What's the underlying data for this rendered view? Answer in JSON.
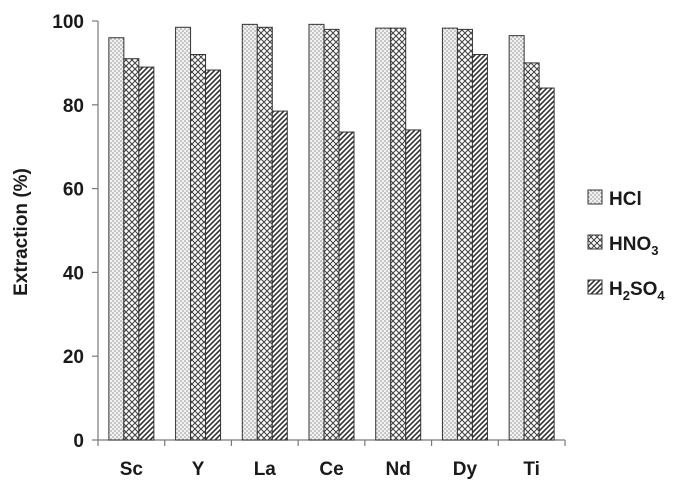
{
  "chart_data": {
    "type": "bar",
    "categories": [
      "Sc",
      "Y",
      "La",
      "Ce",
      "Nd",
      "Dy",
      "Ti"
    ],
    "series": [
      {
        "name": "HCl",
        "pattern": "dots",
        "values": [
          96,
          98.5,
          99.2,
          99.2,
          98.3,
          98.3,
          96.5
        ],
        "legend_base": "HCl",
        "legend_parts": []
      },
      {
        "name": "HNO3",
        "pattern": "crosshatch",
        "values": [
          91,
          92,
          98.5,
          98,
          98.3,
          98,
          90
        ],
        "legend_base": "HNO",
        "legend_parts": [
          {
            "sub": "3",
            "text": ""
          }
        ]
      },
      {
        "name": "H2SO4",
        "pattern": "diagonal",
        "values": [
          89,
          88.3,
          78.5,
          73.5,
          74,
          92,
          84
        ],
        "legend_base": "H",
        "legend_parts": [
          {
            "sub": "2",
            "text": "SO"
          },
          {
            "sub": "4",
            "text": ""
          }
        ]
      }
    ],
    "ylabel": "Extraction (%)",
    "xlabel": "",
    "ylim": [
      0,
      100
    ],
    "yticks": [
      0,
      20,
      40,
      60,
      80,
      100
    ],
    "grid": false,
    "legend_position": "right"
  }
}
